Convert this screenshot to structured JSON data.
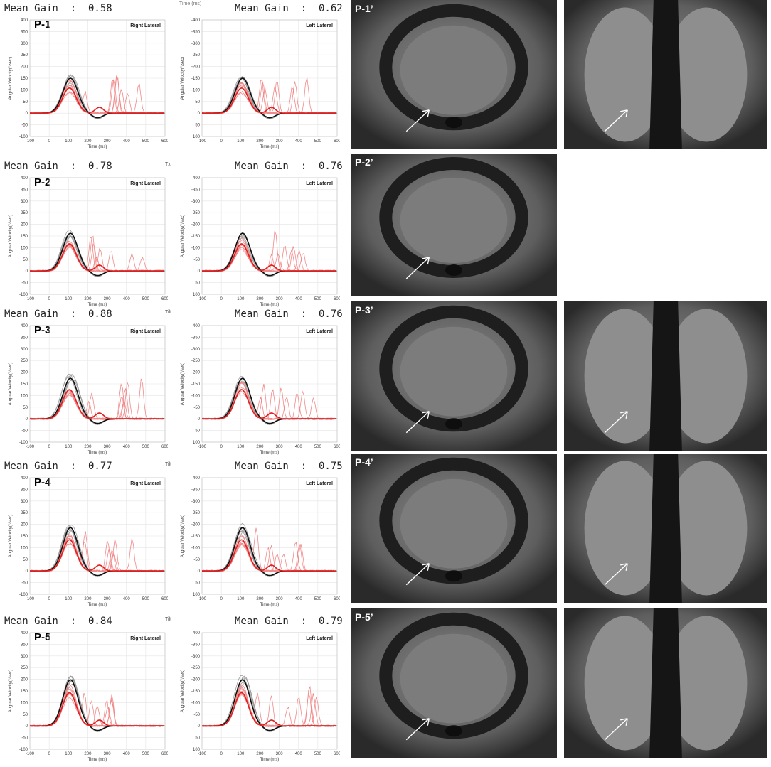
{
  "top_stray_text": "Time (ms)",
  "rows": [
    {
      "panel_label": "P-1",
      "mri_label": "P-1’",
      "right": {
        "gain_text": "Mean Gain  :  0.58",
        "title": "Right Lateral"
      },
      "left": {
        "gain_text": "Mean Gain  :  0.62",
        "title": "Left Lateral"
      },
      "corner_mark": "",
      "has_second_mri": true
    },
    {
      "panel_label": "P-2",
      "mri_label": "P-2’",
      "right": {
        "gain_text": "Mean Gain  :  0.78",
        "title": "Right Lateral"
      },
      "left": {
        "gain_text": "Mean Gain  :  0.76",
        "title": "Left Lateral"
      },
      "corner_mark": "Tx",
      "has_second_mri": false
    },
    {
      "panel_label": "P-3",
      "mri_label": "P-3’",
      "right": {
        "gain_text": "Mean Gain  :  0.88",
        "title": "Right Lateral"
      },
      "left": {
        "gain_text": "Mean Gain  :  0.76",
        "title": "Left Lateral"
      },
      "corner_mark": "Tilt",
      "has_second_mri": true
    },
    {
      "panel_label": "P-4",
      "mri_label": "P-4’",
      "right": {
        "gain_text": "Mean Gain  :  0.77",
        "title": "Right Lateral"
      },
      "left": {
        "gain_text": "Mean Gain  :  0.75",
        "title": "Left Lateral"
      },
      "corner_mark": "Tilt",
      "has_second_mri": true
    },
    {
      "panel_label": "P-5",
      "mri_label": "P-5’",
      "right": {
        "gain_text": "Mean Gain  :  0.84",
        "title": "Right Lateral"
      },
      "left": {
        "gain_text": "Mean Gain  :  0.79",
        "title": "Left Lateral"
      },
      "corner_mark": "Tilt",
      "has_second_mri": true
    }
  ],
  "chart_common": {
    "x_ticks": [
      "-100",
      "0",
      "100",
      "200",
      "300",
      "400",
      "500",
      "600"
    ],
    "y_ticks_right": [
      "400",
      "350",
      "300",
      "250",
      "200",
      "150",
      "100",
      "50",
      "0",
      "-50",
      "-100"
    ],
    "y_ticks_left": [
      "-400",
      "-350",
      "-300",
      "-250",
      "-200",
      "-150",
      "-100",
      "-50",
      "0",
      "50",
      "100"
    ],
    "x_label": "Time (ms)",
    "y_label": "Angular Velocity(°/sec)"
  },
  "colors": {
    "head": "#111111",
    "eye": "#e02020",
    "eye_light": "#f08a8a",
    "head_light": "#9a9a9a",
    "mri_bg": "#3a3a3a"
  }
}
